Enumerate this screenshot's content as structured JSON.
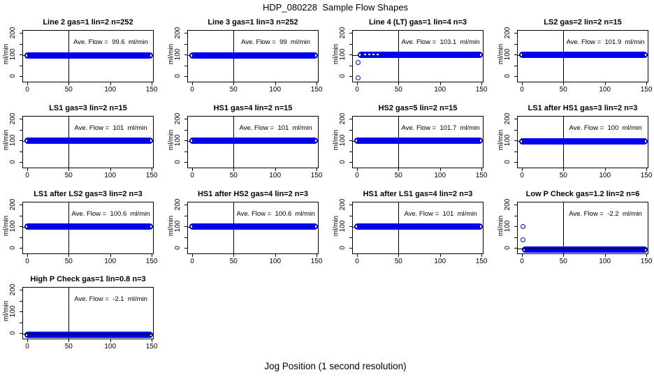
{
  "title": "HDP_080228  Sample Flow Shapes",
  "xlabel": "Jog Position (1 second resolution)",
  "chart_data": {
    "type": "scatter",
    "layout": "4-column grid, 13 panels, shared axes",
    "ylabel": "ml/min",
    "x_ticks": [
      0,
      50,
      100,
      150
    ],
    "y_ticks_labeled": [
      0,
      100,
      200
    ],
    "y_ticks_all": [
      0,
      50,
      100,
      150,
      200
    ],
    "xlim": [
      -6,
      153
    ],
    "ylim": [
      -22,
      213
    ],
    "vline_x": 50,
    "point_color": "#0000ee",
    "line_color": "#000000",
    "panels": [
      {
        "title": "Line 2 gas=1 lin=2 n=252",
        "ave_flow": 99.6,
        "annotation": "Ave. Flow =  99.6  ml/min",
        "band_y": 100,
        "band_x": [
          0,
          152
        ],
        "ref_y": 100,
        "outliers": [],
        "gaps": false
      },
      {
        "title": "Line 3 gas=1 lin=3 n=252",
        "ave_flow": 99,
        "annotation": "Ave. Flow =  99  ml/min",
        "band_y": 100,
        "band_x": [
          0,
          152
        ],
        "ref_y": 100,
        "outliers": [],
        "gaps": false
      },
      {
        "title": "Line 4 (LT) gas=1 lin=4 n=3",
        "ave_flow": 103.1,
        "annotation": "Ave. Flow =  103.1  ml/min",
        "band_y": 103,
        "band_x": [
          4,
          152
        ],
        "ref_y": 100,
        "outliers": [
          [
            1,
            66
          ],
          [
            1,
            -6
          ]
        ],
        "gaps": true
      },
      {
        "title": "LS2 gas=2 lin=2 n=15",
        "ave_flow": 101.9,
        "annotation": "Ave. Flow =  101.9  ml/min",
        "band_y": 102,
        "band_x": [
          0,
          152
        ],
        "ref_y": 100,
        "outliers": [],
        "gaps": false
      },
      {
        "title": "LS1 gas=3 lin=2 n=15",
        "ave_flow": 101,
        "annotation": "Ave. Flow =  101  ml/min",
        "band_y": 101,
        "band_x": [
          0,
          152
        ],
        "ref_y": 100,
        "outliers": [],
        "gaps": false
      },
      {
        "title": "HS1 gas=4 lin=2 n=15",
        "ave_flow": 101,
        "annotation": "Ave. Flow =  101  ml/min",
        "band_y": 101,
        "band_x": [
          0,
          152
        ],
        "ref_y": 100,
        "outliers": [],
        "gaps": false
      },
      {
        "title": "HS2 gas=5 lin=2 n=15",
        "ave_flow": 101.7,
        "annotation": "Ave. Flow =  101.7  ml/min",
        "band_y": 102,
        "band_x": [
          0,
          152
        ],
        "ref_y": 100,
        "outliers": [],
        "gaps": false
      },
      {
        "title": "LS1 after HS1 gas=3 lin=2 n=3",
        "ave_flow": 100,
        "annotation": "Ave. Flow =  100  ml/min",
        "band_y": 100,
        "band_x": [
          0,
          152
        ],
        "ref_y": 100,
        "outliers": [],
        "gaps": false
      },
      {
        "title": "LS1 after LS2 gas=3 lin=2 n=3",
        "ave_flow": 100.6,
        "annotation": "Ave. Flow =  100.6  ml/min",
        "band_y": 101,
        "band_x": [
          0,
          152
        ],
        "ref_y": 100,
        "outliers": [],
        "gaps": false
      },
      {
        "title": "HS1 after HS2 gas=4 lin=2 n=3",
        "ave_flow": 100.6,
        "annotation": "Ave. Flow =  100.6  ml/min",
        "band_y": 101,
        "band_x": [
          0,
          152
        ],
        "ref_y": 100,
        "outliers": [],
        "gaps": false
      },
      {
        "title": "HS1 after LS1 gas=4 lin=2 n=3",
        "ave_flow": 101,
        "annotation": "Ave. Flow =  101  ml/min",
        "band_y": 101,
        "band_x": [
          0,
          152
        ],
        "ref_y": 100,
        "outliers": [],
        "gaps": false
      },
      {
        "title": "Low P Check gas=1.2 lin=2 n=6",
        "ave_flow": -2.2,
        "annotation": "Ave. Flow =  -2.2  ml/min",
        "band_y": -5,
        "band_x": [
          3,
          152
        ],
        "ref_y": 0,
        "outliers": [
          [
            1,
            103
          ],
          [
            1,
            42
          ]
        ],
        "gaps": false
      },
      {
        "title": "High P Check gas=1 lin=0.8 n=3",
        "ave_flow": -2.1,
        "annotation": "Ave. Flow =  -2.1  ml/min",
        "band_y": -5,
        "band_x": [
          0,
          152
        ],
        "ref_y": 0,
        "outliers": [],
        "gaps": false
      }
    ]
  }
}
